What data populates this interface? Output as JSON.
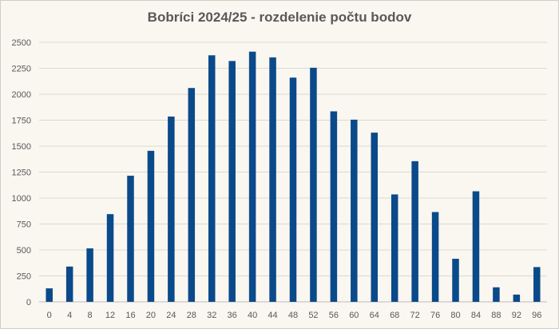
{
  "chart_data": {
    "type": "bar",
    "title": "Bobríci 2024/25 - rozdelenie počtu bodov",
    "xlabel": "",
    "ylabel": "",
    "categories": [
      "0",
      "4",
      "8",
      "12",
      "16",
      "20",
      "24",
      "28",
      "32",
      "36",
      "40",
      "44",
      "48",
      "52",
      "56",
      "60",
      "64",
      "68",
      "72",
      "76",
      "80",
      "84",
      "88",
      "92",
      "96"
    ],
    "values": [
      130,
      340,
      515,
      845,
      1215,
      1455,
      1785,
      2060,
      2375,
      2320,
      2410,
      2355,
      2160,
      2255,
      1835,
      1755,
      1630,
      1035,
      1355,
      865,
      415,
      1065,
      140,
      70,
      335
    ],
    "ylim": [
      0,
      2500
    ],
    "yticks": [
      0,
      250,
      500,
      750,
      1000,
      1250,
      1500,
      1750,
      2000,
      2250,
      2500
    ],
    "grid": true,
    "legend": "none",
    "bar_color": "#0a4a8a"
  }
}
